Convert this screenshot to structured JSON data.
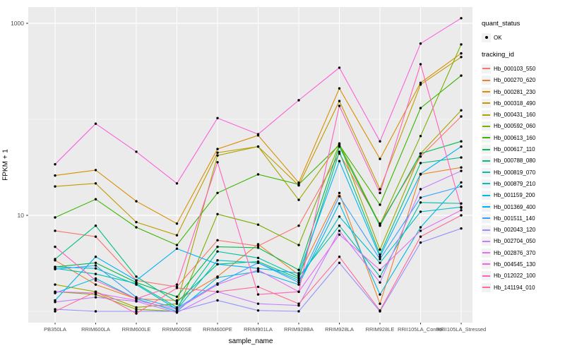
{
  "chart_data": {
    "type": "line",
    "title": "",
    "xlabel": "sample_name",
    "ylabel": "FPKM + 1",
    "y_scale": "log10",
    "ylim": [
      0.85,
      1400
    ],
    "y_ticks": [
      {
        "value": 1000,
        "label": "1000"
      },
      {
        "value": 10,
        "label": "10"
      }
    ],
    "y_minor_gridlines": [
      100,
      1
    ],
    "grid": true,
    "legend_position": "right",
    "panel_bg": "#EBEBEB",
    "grid_color": "#FFFFFF",
    "point_color": "#000000",
    "tick_label_color": "#4D4D4D",
    "categories": [
      "PB350LA",
      "RRIM600LA",
      "RRIM600LE",
      "RRIM600SE",
      "RRIM600PE",
      "RRIM901LA",
      "RRIM928BA",
      "RRIM928LA",
      "RRIM928LE",
      "RRII105LA_Control",
      "RRII105LA_Stressed"
    ],
    "series": [
      {
        "name": "Hb_000103_550",
        "color": "#F8766D",
        "values": [
          6.9,
          6.0,
          2.1,
          1.8,
          5.5,
          4.8,
          7.8,
          44,
          8.2,
          41,
          107
        ]
      },
      {
        "name": "Hb_000270_620",
        "color": "#EA8331",
        "values": [
          3.4,
          1.9,
          1.35,
          1.3,
          2.3,
          5.0,
          2.4,
          17.1,
          1.2,
          26.7,
          31.5
        ]
      },
      {
        "name": "Hb_000281_230",
        "color": "#D89000",
        "values": [
          26,
          29.6,
          14,
          8.2,
          49,
          68,
          21.9,
          210,
          38.7,
          240,
          486
        ]
      },
      {
        "name": "Hb_000318_490",
        "color": "#C09B00",
        "values": [
          20,
          21.5,
          8.5,
          6.2,
          45,
          52,
          20.5,
          155,
          18.7,
          230,
          445
        ]
      },
      {
        "name": "Hb_000431_160",
        "color": "#A3A500",
        "values": [
          1.9,
          1.6,
          1.1,
          1.2,
          42,
          52,
          14.5,
          56,
          4.4,
          44,
          124
        ]
      },
      {
        "name": "Hb_000592_060",
        "color": "#7CAE00",
        "values": [
          1.6,
          1.5,
          1.05,
          1.0,
          10.3,
          8.0,
          4.9,
          55,
          8.0,
          67,
          603
        ]
      },
      {
        "name": "Hb_000613_160",
        "color": "#39B600",
        "values": [
          9.5,
          14.7,
          7.5,
          4.9,
          17.1,
          26.7,
          21.0,
          54,
          12.9,
          131,
          285
        ]
      },
      {
        "name": "Hb_000617_110",
        "color": "#00BB4E",
        "values": [
          2.9,
          3.2,
          2.0,
          1.42,
          4.7,
          4.6,
          2.7,
          52,
          7.8,
          44,
          59
        ]
      },
      {
        "name": "Hb_000788_080",
        "color": "#00BF7D",
        "values": [
          3.5,
          7.8,
          2.3,
          1.25,
          3.1,
          3.3,
          2.2,
          46,
          3.9,
          35,
          40
        ]
      },
      {
        "name": "Hb_000819_070",
        "color": "#00C1A3",
        "values": [
          2.8,
          2.45,
          1.95,
          1.1,
          4.2,
          3.6,
          2.3,
          7.8,
          2.3,
          13.6,
          13.3
        ]
      },
      {
        "name": "Hb_000879_210",
        "color": "#00BFC4",
        "values": [
          2.9,
          2.8,
          1.9,
          1.05,
          3.4,
          3.2,
          2.1,
          9.7,
          3.2,
          10.9,
          12.2
        ]
      },
      {
        "name": "Hb_001159_200",
        "color": "#00BAE0",
        "values": [
          1.55,
          2.2,
          1.35,
          1.0,
          2.25,
          2.6,
          1.9,
          13.3,
          1.5,
          7.5,
          22
        ]
      },
      {
        "name": "Hb_001369_400",
        "color": "#00B0F6",
        "values": [
          1.3,
          3.7,
          2.1,
          4.5,
          3.1,
          2.8,
          2.5,
          36.7,
          3.7,
          27,
          52
        ]
      },
      {
        "name": "Hb_001511_140",
        "color": "#35A2FF",
        "values": [
          2.75,
          3.0,
          1.4,
          1.08,
          1.95,
          3.2,
          2.0,
          15.8,
          3.5,
          15.3,
          20
        ]
      },
      {
        "name": "Hb_002043_120",
        "color": "#9590FF",
        "values": [
          1.05,
          1.0,
          1.0,
          1.0,
          1.3,
          1.02,
          1.0,
          3.2,
          1.0,
          5.2,
          7.3
        ]
      },
      {
        "name": "Hb_002704_050",
        "color": "#C77CFF",
        "values": [
          1.25,
          1.4,
          1.27,
          0.97,
          1.6,
          1.2,
          1.15,
          6.9,
          2.0,
          18.7,
          29
        ]
      },
      {
        "name": "Hb_002876_370",
        "color": "#E76BF3",
        "values": [
          1.6,
          1.55,
          1.3,
          1.05,
          1.9,
          2.7,
          1.6,
          6.3,
          2.7,
          6.9,
          11.3
        ]
      },
      {
        "name": "Hb_004545_130",
        "color": "#FA62DB",
        "values": [
          34,
          90,
          46,
          21.5,
          103,
          70,
          158,
          345,
          59,
          615,
          1130
        ]
      },
      {
        "name": "Hb_012022_100",
        "color": "#FF62BC",
        "values": [
          4.7,
          2.1,
          1.35,
          1.9,
          35.7,
          1.5,
          1.6,
          138,
          17.1,
          375,
          12
        ]
      },
      {
        "name": "Hb_141194_010",
        "color": "#FF6A98",
        "values": [
          1.0,
          1.6,
          0.95,
          1.75,
          1.6,
          1.8,
          1.2,
          3.7,
          1.02,
          6.0,
          10
        ]
      }
    ]
  },
  "legend": {
    "quant_status_title": "quant_status",
    "quant_status_items": [
      {
        "label": "OK"
      }
    ],
    "tracking_id_title": "tracking_id"
  }
}
